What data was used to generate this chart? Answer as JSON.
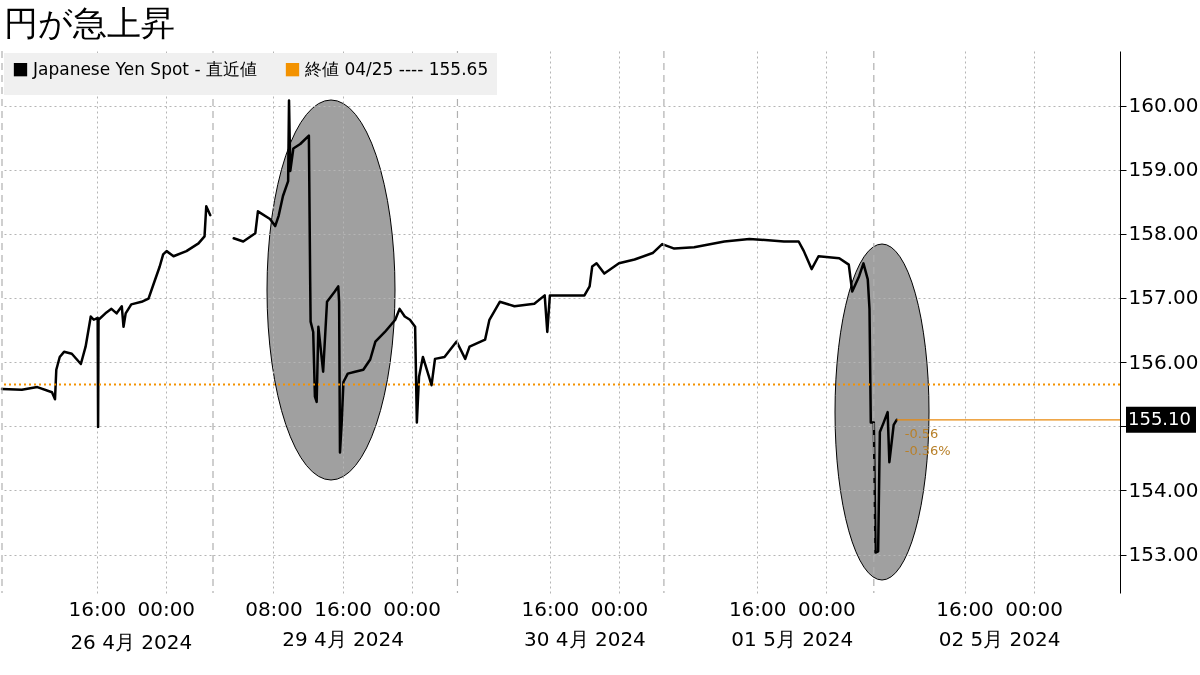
{
  "chart_data": [
    {
      "type": "line",
      "title": "円が急上昇",
      "series": [
        {
          "color": "#000000",
          "x": [
            "2024-04-26T05:00",
            "2024-04-26T07:18",
            "2024-04-26T09:06",
            "2024-04-26T10:48",
            "2024-04-26T11:09",
            "2024-04-26T11:18",
            "2024-04-26T11:42",
            "2024-04-26T12:12",
            "2024-04-26T13:06",
            "2024-04-26T14:09",
            "2024-04-26T14:42",
            "2024-04-26T15:18",
            "2024-04-26T15:39",
            "2024-04-26T16:06",
            "2024-04-26T16:09",
            "2024-04-26T16:12",
            "2024-04-26T17:00",
            "2024-04-26T17:42",
            "2024-04-26T18:18",
            "2024-04-26T18:54",
            "2024-04-26T19:06",
            "2024-04-26T19:21",
            "2024-04-26T20:00",
            "2024-04-26T21:12",
            "2024-04-26T22:00",
            "2024-04-26T22:42",
            "2024-04-26T23:18",
            "2024-04-26T23:42",
            "2024-04-27T00:06",
            "2024-04-27T00:54",
            "2024-04-27T02:24",
            "2024-04-27T03:48",
            "2024-04-27T04:30",
            "2024-04-27T04:42",
            "2024-04-27T05:10"
          ],
          "values": [
            155.58,
            155.57,
            155.61,
            155.53,
            155.42,
            155.88,
            156.08,
            156.16,
            156.13,
            155.97,
            156.24,
            156.71,
            156.66,
            156.69,
            154.99,
            156.66,
            156.76,
            156.83,
            156.76,
            156.87,
            156.55,
            156.76,
            156.9,
            156.94,
            156.99,
            157.26,
            157.49,
            157.68,
            157.73,
            157.65,
            157.73,
            157.85,
            157.96,
            158.43,
            158.29
          ]
        }
      ],
      "xlim": [
        "2024-04-26T05:00",
        "2024-04-27T05:15"
      ],
      "xticks": [
        {
          "value": "2024-04-26T16:00",
          "label": "16:00"
        },
        {
          "value": "2024-04-27T00:00",
          "label": "00:00"
        }
      ],
      "annotations": [
        "26 4月 2024"
      ],
      "ylim": [
        152.4,
        160.85
      ],
      "yticks": [
        153,
        154,
        155,
        156,
        157,
        158,
        159,
        160
      ],
      "tick_labels": "x",
      "ref_lines": [
        {
          "axis": "y",
          "value": 155.65,
          "color": "#f39200",
          "line_style": "dotted"
        },
        {
          "axis": "x",
          "value": "2024-04-26T05:00",
          "color": "#b0b0b0",
          "line_style": "dashed"
        }
      ],
      "grid": true,
      "marker": "none",
      "line_style": "solid"
    },
    {
      "type": "line",
      "series": [
        {
          "name": "Japanese Yen Spot - 直近値",
          "color": "#000000",
          "x": [
            "2024-04-29T03:24",
            "2024-04-29T04:30",
            "2024-04-29T05:54",
            "2024-04-29T06:12",
            "2024-04-29T07:36",
            "2024-04-29T08:12",
            "2024-04-29T08:36",
            "2024-04-29T09:06",
            "2024-04-29T09:42",
            "2024-04-29T09:48",
            "2024-04-29T09:57",
            "2024-04-29T10:18",
            "2024-04-29T11:06",
            "2024-04-29T12:06",
            "2024-04-29T12:15",
            "2024-04-29T12:18",
            "2024-04-29T12:36",
            "2024-04-29T12:48",
            "2024-04-29T13:00",
            "2024-04-29T13:12",
            "2024-04-29T13:45",
            "2024-04-29T14:12",
            "2024-04-29T15:06",
            "2024-04-29T15:30",
            "2024-04-29T15:36",
            "2024-04-29T15:42",
            "2024-04-29T15:54",
            "2024-04-29T16:06",
            "2024-04-29T16:36",
            "2024-04-29T17:27",
            "2024-04-29T18:24",
            "2024-04-29T19:12",
            "2024-04-29T19:48",
            "2024-04-29T20:54",
            "2024-04-29T22:06",
            "2024-04-29T22:36",
            "2024-04-29T23:12",
            "2024-04-29T23:48",
            "2024-04-30T00:24",
            "2024-04-30T00:36",
            "2024-04-30T00:51",
            "2024-04-30T01:18",
            "2024-04-30T02:18",
            "2024-04-30T02:42",
            "2024-04-30T03:48",
            "2024-04-30T05:12",
            "2024-04-30T06:12",
            "2024-04-30T06:42",
            "2024-04-30T08:30",
            "2024-04-30T09:00",
            "2024-04-30T10:12",
            "2024-04-30T11:54",
            "2024-04-30T14:12",
            "2024-04-30T15:24",
            "2024-04-30T15:42",
            "2024-04-30T16:00",
            "2024-04-30T17:42",
            "2024-04-30T20:00",
            "2024-04-30T20:36",
            "2024-04-30T20:54",
            "2024-04-30T21:24",
            "2024-04-30T22:18",
            "2024-05-01T00:00",
            "2024-05-01T01:48",
            "2024-05-01T03:54",
            "2024-05-01T05:00",
            "2024-05-01T06:24",
            "2024-05-01T08:42",
            "2024-05-01T12:12",
            "2024-05-01T15:06",
            "2024-05-01T19:06",
            "2024-05-01T20:48",
            "2024-05-01T21:24",
            "2024-05-01T22:18",
            "2024-05-01T23:06",
            "2024-05-02T01:30",
            "2024-05-02T02:36",
            "2024-05-02T03:00",
            "2024-05-02T03:48",
            "2024-05-02T04:18",
            "2024-05-02T04:48",
            "2024-05-02T05:00",
            "2024-05-02T05:09",
            "2024-05-02T05:30",
            "2024-05-02T05:42",
            "2024-05-02T06:00",
            "2024-05-02T06:12",
            "2024-05-02T06:39",
            "2024-05-02T07:06",
            "2024-05-02T07:18",
            "2024-05-02T07:48",
            "2024-05-02T08:09"
          ],
          "values": [
            157.93,
            157.88,
            158.01,
            158.35,
            158.23,
            158.12,
            158.28,
            158.59,
            158.82,
            160.08,
            158.98,
            159.33,
            159.4,
            159.53,
            157.26,
            156.63,
            156.47,
            155.46,
            155.38,
            156.55,
            155.85,
            156.94,
            157.1,
            157.18,
            156.94,
            154.59,
            155.06,
            155.69,
            155.82,
            155.85,
            155.88,
            156.04,
            156.32,
            156.47,
            156.66,
            156.83,
            156.71,
            156.66,
            156.55,
            155.06,
            155.77,
            156.08,
            155.64,
            156.05,
            156.08,
            156.32,
            156.05,
            156.24,
            156.35,
            156.66,
            156.94,
            156.87,
            156.91,
            157.04,
            156.47,
            157.04,
            157.04,
            157.04,
            157.18,
            157.49,
            157.54,
            157.38,
            157.54,
            157.6,
            157.7,
            157.84,
            157.77,
            157.79,
            157.88,
            157.92,
            157.88,
            157.88,
            157.73,
            157.45,
            157.65,
            157.62,
            157.52,
            157.1,
            157.34,
            157.54,
            157.29,
            156.83,
            155.06,
            155.06,
            153.03,
            153.05,
            154.91,
            155.06,
            155.22,
            154.44,
            155.02,
            155.1
          ]
        }
      ],
      "xlim": [
        "2024-04-29T01:00",
        "2024-05-03T10:00"
      ],
      "xticks": [
        {
          "value": "2024-04-29T08:00",
          "label": "08:00"
        },
        {
          "value": "2024-04-29T16:00",
          "label": "16:00"
        },
        {
          "value": "2024-04-30T00:00",
          "label": "00:00"
        },
        {
          "value": "2024-04-30T16:00",
          "label": "16:00"
        },
        {
          "value": "2024-05-01T00:00",
          "label": "00:00"
        },
        {
          "value": "2024-05-01T16:00",
          "label": "16:00"
        },
        {
          "value": "2024-05-02T00:00",
          "label": "00:00"
        },
        {
          "value": "2024-05-02T16:00",
          "label": "16:00"
        },
        {
          "value": "2024-05-03T00:00",
          "label": "00:00"
        }
      ],
      "x2lim": [
        "2024-04-29T01:00",
        "2024-05-03T10:00"
      ],
      "x2ticks": [
        {
          "value": "2024-04-29T16:00",
          "label": "29 4月 2024"
        },
        {
          "value": "2024-04-30T20:00",
          "label": "30 4月 2024"
        },
        {
          "value": "2024-05-01T20:00",
          "label": "01 5月 2024"
        },
        {
          "value": "2024-05-02T20:00",
          "label": "02 5月 2024"
        }
      ],
      "ylim": [
        152.4,
        160.85
      ],
      "yticks": [
        {
          "value": 153,
          "label": "153.00"
        },
        {
          "value": 154,
          "label": "154.00"
        },
        {
          "value": 155,
          "label": null
        },
        {
          "value": 156,
          "label": "156.00"
        },
        {
          "value": 157,
          "label": "157.00"
        },
        {
          "value": 158,
          "label": "158.00"
        },
        {
          "value": 159,
          "label": "159.00"
        },
        {
          "value": 160,
          "label": "160.00"
        }
      ],
      "ref_lines": [
        {
          "axis": "y",
          "value": 155.65,
          "label": "終値 04/25 ---- 155.65",
          "color": "#f39200",
          "line_style": "dotted"
        },
        {
          "axis": "y",
          "value": 155.1,
          "label": "155.10",
          "color": "#e8890c",
          "line_style": "solid"
        },
        {
          "axis": "x",
          "value": "2024-04-29T01:00",
          "color": "#b0b0b0",
          "line_style": "dashed"
        },
        {
          "axis": "x",
          "value": "2024-04-30T05:18",
          "color": "#b0b0b0",
          "line_style": "dashed"
        },
        {
          "axis": "x",
          "value": "2024-05-01T05:12",
          "color": "#b0b0b0",
          "line_style": "dashed"
        },
        {
          "axis": "x",
          "value": "2024-05-02T05:30",
          "color": "#b0b0b0",
          "line_style": "dashed"
        }
      ],
      "annotations": [
        {
          "text": "-0.56",
          "x": "2024-05-02T08:09",
          "y": 155.1
        },
        {
          "text": "-0.36%",
          "x": "2024-05-02T08:09",
          "y": 155.1
        }
      ],
      "grid": true,
      "legend": "top left",
      "marker": "none",
      "line_style": "solid"
    }
  ]
}
